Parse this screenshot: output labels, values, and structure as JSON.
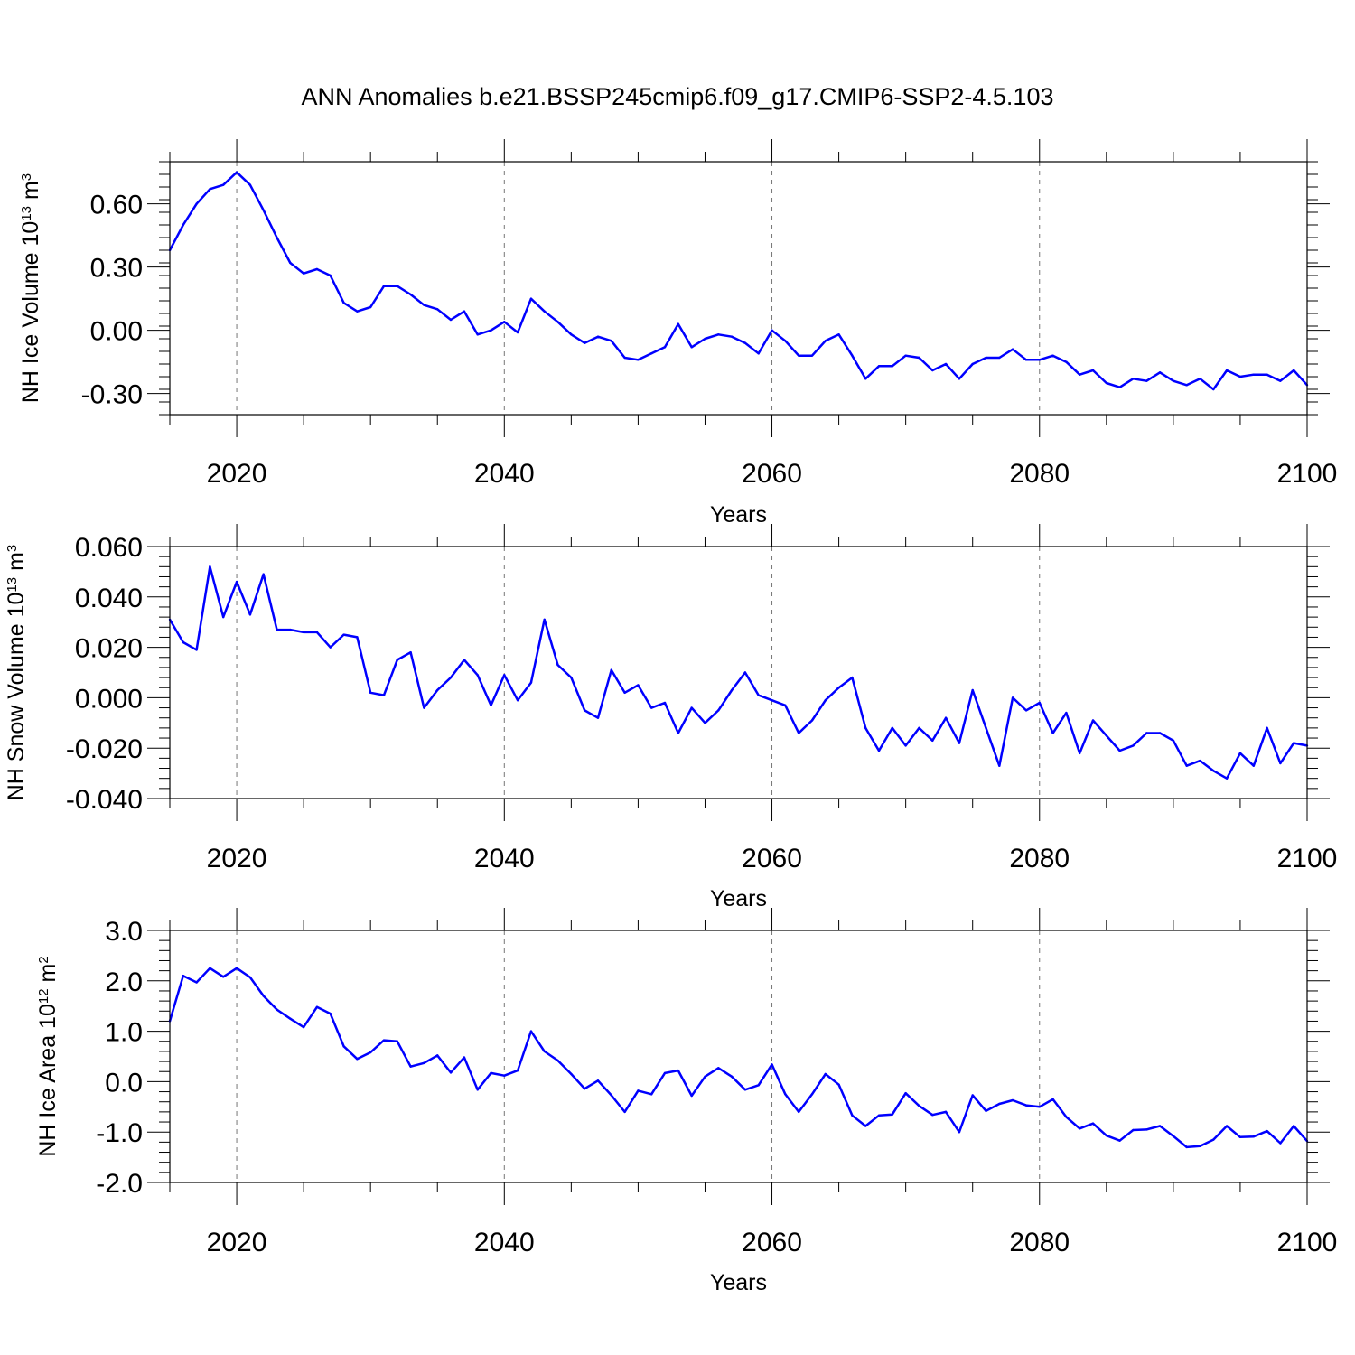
{
  "chart_data": {
    "type": "line",
    "title": "ANN Anomalies b.e21.BSSP245cmip6.f09_g17.CMIP6-SSP2-4.5.103",
    "line_color": "#0000ff",
    "panels": [
      {
        "id": "ice-volume",
        "ylabel": "NH Ice Volume 10",
        "ylabel_exp": "13",
        "ylabel_unit": " m",
        "ylabel_unit_exp": "3",
        "xlabel": "Years",
        "xlim": [
          2015,
          2100
        ],
        "ylim": [
          -0.4,
          0.8
        ],
        "yticks": [
          -0.3,
          0.0,
          0.3,
          0.6
        ],
        "ytick_labels": [
          "-0.30",
          "0.00",
          "0.30",
          "0.60"
        ],
        "xticks": [
          2020,
          2040,
          2060,
          2080,
          2100
        ],
        "xtick_labels": [
          "2020",
          "2040",
          "2060",
          "2080",
          "2100"
        ],
        "start_year": 2015,
        "values": [
          0.38,
          0.5,
          0.6,
          0.67,
          0.69,
          0.75,
          0.69,
          0.57,
          0.44,
          0.32,
          0.27,
          0.29,
          0.26,
          0.13,
          0.09,
          0.11,
          0.21,
          0.21,
          0.17,
          0.12,
          0.1,
          0.05,
          0.09,
          -0.02,
          0.0,
          0.04,
          -0.01,
          0.15,
          0.09,
          0.04,
          -0.02,
          -0.06,
          -0.03,
          -0.05,
          -0.13,
          -0.14,
          -0.11,
          -0.08,
          0.03,
          -0.08,
          -0.04,
          -0.02,
          -0.03,
          -0.06,
          -0.11,
          0.0,
          -0.05,
          -0.12,
          -0.12,
          -0.05,
          -0.02,
          -0.12,
          -0.23,
          -0.17,
          -0.17,
          -0.12,
          -0.13,
          -0.19,
          -0.16,
          -0.23,
          -0.16,
          -0.13,
          -0.13,
          -0.09,
          -0.14,
          -0.14,
          -0.12,
          -0.15,
          -0.21,
          -0.19,
          -0.25,
          -0.27,
          -0.23,
          -0.24,
          -0.2,
          -0.24,
          -0.26,
          -0.23,
          -0.28,
          -0.19,
          -0.22,
          -0.21,
          -0.21,
          -0.24,
          -0.19,
          -0.26
        ]
      },
      {
        "id": "snow-volume",
        "ylabel": "NH Snow Volume 10",
        "ylabel_exp": "13",
        "ylabel_unit": " m",
        "ylabel_unit_exp": "3",
        "xlabel": "Years",
        "xlim": [
          2015,
          2100
        ],
        "ylim": [
          -0.04,
          0.06
        ],
        "yticks": [
          -0.04,
          -0.02,
          0.0,
          0.02,
          0.04,
          0.06
        ],
        "ytick_labels": [
          "-0.040",
          "-0.020",
          "0.000",
          "0.020",
          "0.040",
          "0.060"
        ],
        "xticks": [
          2020,
          2040,
          2060,
          2080,
          2100
        ],
        "xtick_labels": [
          "2020",
          "2040",
          "2060",
          "2080",
          "2100"
        ],
        "start_year": 2015,
        "values": [
          0.031,
          0.022,
          0.019,
          0.052,
          0.032,
          0.046,
          0.033,
          0.049,
          0.027,
          0.027,
          0.026,
          0.026,
          0.02,
          0.025,
          0.024,
          0.002,
          0.001,
          0.015,
          0.018,
          -0.004,
          0.003,
          0.008,
          0.015,
          0.009,
          -0.003,
          0.009,
          -0.001,
          0.006,
          0.031,
          0.013,
          0.008,
          -0.005,
          -0.008,
          0.011,
          0.002,
          0.005,
          -0.004,
          -0.002,
          -0.014,
          -0.004,
          -0.01,
          -0.005,
          0.003,
          0.01,
          0.001,
          -0.001,
          -0.003,
          -0.014,
          -0.009,
          -0.001,
          0.004,
          0.008,
          -0.012,
          -0.021,
          -0.012,
          -0.019,
          -0.012,
          -0.017,
          -0.008,
          -0.018,
          0.003,
          -0.012,
          -0.027,
          0.0,
          -0.005,
          -0.002,
          -0.014,
          -0.006,
          -0.022,
          -0.009,
          -0.015,
          -0.021,
          -0.019,
          -0.014,
          -0.014,
          -0.017,
          -0.027,
          -0.025,
          -0.029,
          -0.032,
          -0.022,
          -0.027,
          -0.012,
          -0.026,
          -0.018,
          -0.019
        ]
      },
      {
        "id": "ice-area",
        "ylabel": "NH Ice Area 10",
        "ylabel_exp": "12",
        "ylabel_unit": " m",
        "ylabel_unit_exp": "2",
        "xlabel": "Years",
        "xlim": [
          2015,
          2100
        ],
        "ylim": [
          -2.0,
          3.0
        ],
        "yticks": [
          -2.0,
          -1.0,
          0.0,
          1.0,
          2.0,
          3.0
        ],
        "ytick_labels": [
          "-2.0",
          "-1.0",
          "0.0",
          "1.0",
          "2.0",
          "3.0"
        ],
        "xticks": [
          2020,
          2040,
          2060,
          2080,
          2100
        ],
        "xtick_labels": [
          "2020",
          "2040",
          "2060",
          "2080",
          "2100"
        ],
        "start_year": 2015,
        "values": [
          1.2,
          2.1,
          1.97,
          2.25,
          2.08,
          2.25,
          2.07,
          1.7,
          1.43,
          1.25,
          1.08,
          1.48,
          1.35,
          0.7,
          0.45,
          0.58,
          0.82,
          0.8,
          0.3,
          0.37,
          0.52,
          0.18,
          0.48,
          -0.16,
          0.17,
          0.12,
          0.22,
          1.0,
          0.6,
          0.42,
          0.15,
          -0.14,
          0.02,
          -0.27,
          -0.6,
          -0.18,
          -0.25,
          0.17,
          0.22,
          -0.28,
          0.1,
          0.27,
          0.1,
          -0.16,
          -0.07,
          0.34,
          -0.25,
          -0.6,
          -0.25,
          0.15,
          -0.06,
          -0.67,
          -0.88,
          -0.67,
          -0.65,
          -0.23,
          -0.48,
          -0.66,
          -0.6,
          -1.0,
          -0.27,
          -0.58,
          -0.44,
          -0.37,
          -0.47,
          -0.5,
          -0.35,
          -0.7,
          -0.93,
          -0.83,
          -1.07,
          -1.17,
          -0.96,
          -0.95,
          -0.88,
          -1.08,
          -1.3,
          -1.28,
          -1.15,
          -0.88,
          -1.1,
          -1.09,
          -0.98,
          -1.22,
          -0.88,
          -1.18
        ]
      }
    ]
  }
}
